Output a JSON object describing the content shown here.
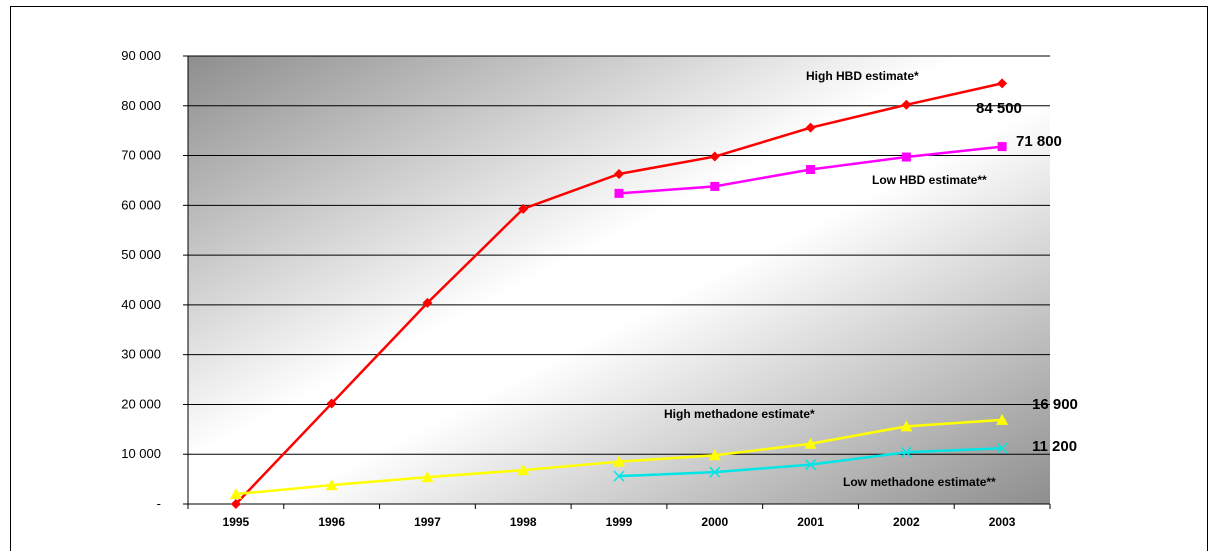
{
  "chart_data": {
    "type": "line",
    "categories": [
      "1995",
      "1996",
      "1997",
      "1998",
      "1999",
      "2000",
      "2001",
      "2002",
      "2003"
    ],
    "ylim": [
      0,
      90000
    ],
    "yticks": [
      {
        "value": 0,
        "label": "-"
      },
      {
        "value": 10000,
        "label": "10 000"
      },
      {
        "value": 20000,
        "label": "20 000"
      },
      {
        "value": 30000,
        "label": "30 000"
      },
      {
        "value": 40000,
        "label": "40 000"
      },
      {
        "value": 50000,
        "label": "50 000"
      },
      {
        "value": 60000,
        "label": "60 000"
      },
      {
        "value": 70000,
        "label": "70 000"
      },
      {
        "value": 80000,
        "label": "80 000"
      },
      {
        "value": 90000,
        "label": "90 000"
      }
    ],
    "grid": true,
    "series": [
      {
        "name": "High HBD estimate*",
        "color": "#ff0000",
        "marker": "diamond",
        "values": [
          0,
          20200,
          40400,
          59300,
          66300,
          69800,
          75600,
          80200,
          84500
        ],
        "end_label": "84 500"
      },
      {
        "name": "Low HBD estimate**",
        "color": "#ff00ff",
        "marker": "square",
        "values": [
          null,
          null,
          null,
          null,
          62400,
          63800,
          67200,
          69700,
          71800
        ],
        "end_label": "71 800"
      },
      {
        "name": "High methadone estimate*",
        "color": "#ffff00",
        "marker": "triangle",
        "values": [
          2000,
          3800,
          5400,
          6800,
          8500,
          9800,
          12100,
          15600,
          16900
        ],
        "end_label": "16 900"
      },
      {
        "name": "Low methadone estimate**",
        "color": "#00e5e5",
        "marker": "x",
        "values": [
          null,
          null,
          null,
          null,
          5600,
          6400,
          7900,
          10400,
          11200
        ],
        "end_label": "11 200"
      }
    ]
  }
}
